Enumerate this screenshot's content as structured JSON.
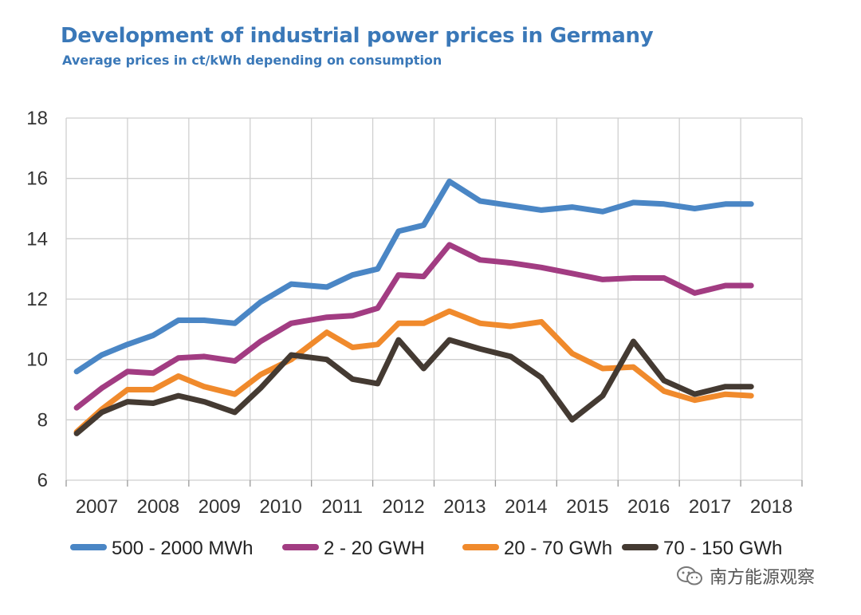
{
  "title": "Development of industrial power prices in Germany",
  "subtitle": "Average prices in ct/kWh depending on consumption",
  "watermark": "南方能源观察",
  "chart_data": {
    "type": "line",
    "title": "Development of industrial power prices in Germany",
    "subtitle": "Average prices in ct/kWh depending on consumption",
    "xlabel": "",
    "ylabel": "",
    "ylim": [
      6,
      18
    ],
    "y_ticks": [
      6,
      8,
      10,
      12,
      14,
      16,
      18
    ],
    "x_tick_labels": [
      "2007",
      "2008",
      "2009",
      "2010",
      "2011",
      "2012",
      "2013",
      "2014",
      "2015",
      "2016",
      "2017",
      "2018"
    ],
    "x_range": [
      2006.5,
      2018.5
    ],
    "grid": true,
    "legend_position": "bottom",
    "series": [
      {
        "name": "500 - 2000 MWh",
        "color": "#4a86c5",
        "x": [
          2006.67,
          2007.08,
          2007.5,
          2007.92,
          2008.33,
          2008.75,
          2009.25,
          2009.67,
          2010.17,
          2010.75,
          2011.17,
          2011.58,
          2011.92,
          2012.33,
          2012.75,
          2013.25,
          2013.75,
          2014.25,
          2014.75,
          2015.25,
          2015.75,
          2016.25,
          2016.75,
          2017.25,
          2017.67
        ],
        "y": [
          9.6,
          10.15,
          10.5,
          10.8,
          11.3,
          11.3,
          11.2,
          11.9,
          12.5,
          12.4,
          12.8,
          13.0,
          14.25,
          14.45,
          15.9,
          15.25,
          15.1,
          14.95,
          15.05,
          14.9,
          15.2,
          15.15,
          15.0,
          15.15,
          15.15
        ]
      },
      {
        "name": "2 - 20 GWH",
        "color": "#a23c82",
        "x": [
          2006.67,
          2007.08,
          2007.5,
          2007.92,
          2008.33,
          2008.75,
          2009.25,
          2009.67,
          2010.17,
          2010.75,
          2011.17,
          2011.58,
          2011.92,
          2012.33,
          2012.75,
          2013.25,
          2013.75,
          2014.25,
          2014.75,
          2015.25,
          2015.75,
          2016.25,
          2016.75,
          2017.25,
          2017.67
        ],
        "y": [
          8.4,
          9.05,
          9.6,
          9.55,
          10.05,
          10.1,
          9.95,
          10.6,
          11.2,
          11.4,
          11.45,
          11.7,
          12.8,
          12.75,
          13.8,
          13.3,
          13.2,
          13.05,
          12.85,
          12.65,
          12.7,
          12.7,
          12.2,
          12.45,
          12.45
        ]
      },
      {
        "name": "20 - 70 GWh",
        "color": "#f08a2c",
        "x": [
          2006.67,
          2007.08,
          2007.5,
          2007.92,
          2008.33,
          2008.75,
          2009.25,
          2009.67,
          2010.17,
          2010.75,
          2011.17,
          2011.58,
          2011.92,
          2012.33,
          2012.75,
          2013.25,
          2013.75,
          2014.25,
          2014.75,
          2015.25,
          2015.75,
          2016.25,
          2016.75,
          2017.25,
          2017.67
        ],
        "y": [
          7.6,
          8.35,
          9.0,
          9.0,
          9.45,
          9.1,
          8.85,
          9.5,
          10.0,
          10.9,
          10.4,
          10.5,
          11.2,
          11.2,
          11.6,
          11.2,
          11.1,
          11.25,
          10.2,
          9.7,
          9.75,
          8.95,
          8.65,
          8.85,
          8.8
        ]
      },
      {
        "name": "70 - 150 GWh",
        "color": "#443a32",
        "x": [
          2006.67,
          2007.08,
          2007.5,
          2007.92,
          2008.33,
          2008.75,
          2009.25,
          2009.67,
          2010.17,
          2010.75,
          2011.17,
          2011.58,
          2011.92,
          2012.33,
          2012.75,
          2013.25,
          2013.75,
          2014.25,
          2014.75,
          2015.25,
          2015.75,
          2016.25,
          2016.75,
          2017.25,
          2017.67
        ],
        "y": [
          7.55,
          8.25,
          8.6,
          8.55,
          8.8,
          8.6,
          8.25,
          9.05,
          10.15,
          10.0,
          9.35,
          9.2,
          10.65,
          9.7,
          10.65,
          10.35,
          10.1,
          9.4,
          8.0,
          8.8,
          10.6,
          9.3,
          8.85,
          9.1,
          9.1
        ]
      }
    ]
  }
}
